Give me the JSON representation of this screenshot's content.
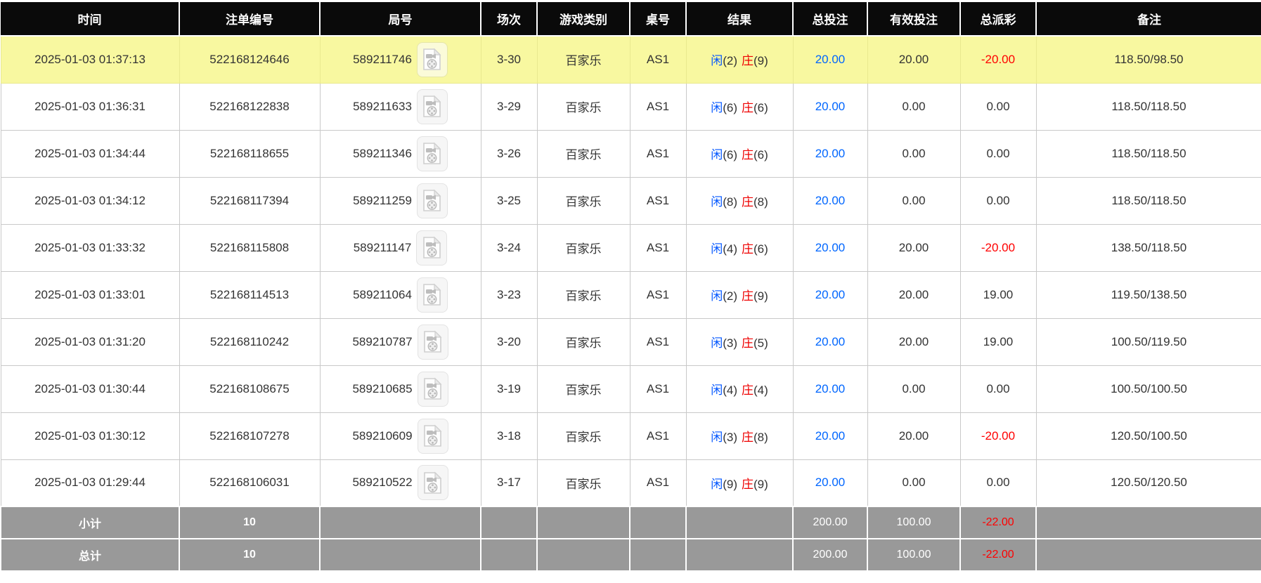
{
  "colors": {
    "header_bg": "#0a0a0a",
    "highlight": "#f8f8a0",
    "link_blue": "#0066ff",
    "player_blue": "#0055ff",
    "banker_red": "#ee0000",
    "negative_red": "#ff0000",
    "footer_bg": "#999999",
    "border": "#c9c9c9"
  },
  "icons": {
    "round_video": "video-file-icon"
  },
  "table": {
    "columns": [
      {
        "key": "time",
        "label": "时间"
      },
      {
        "key": "bet_id",
        "label": "注单编号"
      },
      {
        "key": "round_id",
        "label": "局号"
      },
      {
        "key": "session",
        "label": "场次"
      },
      {
        "key": "game_type",
        "label": "游戏类别"
      },
      {
        "key": "table_no",
        "label": "桌号"
      },
      {
        "key": "result",
        "label": "结果"
      },
      {
        "key": "total_bet",
        "label": "总投注"
      },
      {
        "key": "valid_bet",
        "label": "有效投注"
      },
      {
        "key": "total_payout",
        "label": "总派彩"
      },
      {
        "key": "remark",
        "label": "备注"
      }
    ],
    "rows": [
      {
        "highlighted": true,
        "time": "2025-01-03 01:37:13",
        "bet_id": "522168124646",
        "round_id": "589211746",
        "session": "3-30",
        "game_type": "百家乐",
        "table_no": "AS1",
        "player": "闲",
        "player_score": "(2)",
        "banker": "庄",
        "banker_score": "(9)",
        "total_bet": "20.00",
        "valid_bet": "20.00",
        "total_payout": "-20.00",
        "remark": "118.50/98.50"
      },
      {
        "highlighted": false,
        "time": "2025-01-03 01:36:31",
        "bet_id": "522168122838",
        "round_id": "589211633",
        "session": "3-29",
        "game_type": "百家乐",
        "table_no": "AS1",
        "player": "闲",
        "player_score": "(6)",
        "banker": "庄",
        "banker_score": "(6)",
        "total_bet": "20.00",
        "valid_bet": "0.00",
        "total_payout": "0.00",
        "remark": "118.50/118.50"
      },
      {
        "highlighted": false,
        "time": "2025-01-03 01:34:44",
        "bet_id": "522168118655",
        "round_id": "589211346",
        "session": "3-26",
        "game_type": "百家乐",
        "table_no": "AS1",
        "player": "闲",
        "player_score": "(6)",
        "banker": "庄",
        "banker_score": "(6)",
        "total_bet": "20.00",
        "valid_bet": "0.00",
        "total_payout": "0.00",
        "remark": "118.50/118.50"
      },
      {
        "highlighted": false,
        "time": "2025-01-03 01:34:12",
        "bet_id": "522168117394",
        "round_id": "589211259",
        "session": "3-25",
        "game_type": "百家乐",
        "table_no": "AS1",
        "player": "闲",
        "player_score": "(8)",
        "banker": "庄",
        "banker_score": "(8)",
        "total_bet": "20.00",
        "valid_bet": "0.00",
        "total_payout": "0.00",
        "remark": "118.50/118.50"
      },
      {
        "highlighted": false,
        "time": "2025-01-03 01:33:32",
        "bet_id": "522168115808",
        "round_id": "589211147",
        "session": "3-24",
        "game_type": "百家乐",
        "table_no": "AS1",
        "player": "闲",
        "player_score": "(4)",
        "banker": "庄",
        "banker_score": "(6)",
        "total_bet": "20.00",
        "valid_bet": "20.00",
        "total_payout": "-20.00",
        "remark": "138.50/118.50"
      },
      {
        "highlighted": false,
        "time": "2025-01-03 01:33:01",
        "bet_id": "522168114513",
        "round_id": "589211064",
        "session": "3-23",
        "game_type": "百家乐",
        "table_no": "AS1",
        "player": "闲",
        "player_score": "(2)",
        "banker": "庄",
        "banker_score": "(9)",
        "total_bet": "20.00",
        "valid_bet": "20.00",
        "total_payout": "19.00",
        "remark": "119.50/138.50"
      },
      {
        "highlighted": false,
        "time": "2025-01-03 01:31:20",
        "bet_id": "522168110242",
        "round_id": "589210787",
        "session": "3-20",
        "game_type": "百家乐",
        "table_no": "AS1",
        "player": "闲",
        "player_score": "(3)",
        "banker": "庄",
        "banker_score": "(5)",
        "total_bet": "20.00",
        "valid_bet": "20.00",
        "total_payout": "19.00",
        "remark": "100.50/119.50"
      },
      {
        "highlighted": false,
        "time": "2025-01-03 01:30:44",
        "bet_id": "522168108675",
        "round_id": "589210685",
        "session": "3-19",
        "game_type": "百家乐",
        "table_no": "AS1",
        "player": "闲",
        "player_score": "(4)",
        "banker": "庄",
        "banker_score": "(4)",
        "total_bet": "20.00",
        "valid_bet": "0.00",
        "total_payout": "0.00",
        "remark": "100.50/100.50"
      },
      {
        "highlighted": false,
        "time": "2025-01-03 01:30:12",
        "bet_id": "522168107278",
        "round_id": "589210609",
        "session": "3-18",
        "game_type": "百家乐",
        "table_no": "AS1",
        "player": "闲",
        "player_score": "(3)",
        "banker": "庄",
        "banker_score": "(8)",
        "total_bet": "20.00",
        "valid_bet": "20.00",
        "total_payout": "-20.00",
        "remark": "120.50/100.50"
      },
      {
        "highlighted": false,
        "time": "2025-01-03 01:29:44",
        "bet_id": "522168106031",
        "round_id": "589210522",
        "session": "3-17",
        "game_type": "百家乐",
        "table_no": "AS1",
        "player": "闲",
        "player_score": "(9)",
        "banker": "庄",
        "banker_score": "(9)",
        "total_bet": "20.00",
        "valid_bet": "0.00",
        "total_payout": "0.00",
        "remark": "120.50/120.50"
      }
    ],
    "footer": [
      {
        "label": "小计",
        "count": "10",
        "total_bet": "200.00",
        "valid_bet": "100.00",
        "total_payout": "-22.00"
      },
      {
        "label": "总计",
        "count": "10",
        "total_bet": "200.00",
        "valid_bet": "100.00",
        "total_payout": "-22.00"
      }
    ]
  }
}
